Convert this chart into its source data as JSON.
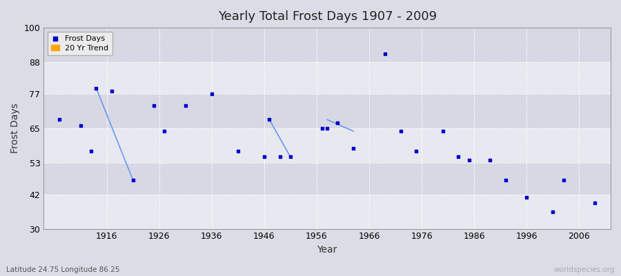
{
  "title": "Yearly Total Frost Days 1907 - 2009",
  "xlabel": "Year",
  "ylabel": "Frost Days",
  "subtitle_lat": "Latitude 24.75 Longitude 86.25",
  "watermark": "worldspecies.org",
  "ylim": [
    30,
    100
  ],
  "xlim": [
    1904,
    2012
  ],
  "yticks": [
    30,
    42,
    53,
    65,
    77,
    88,
    100
  ],
  "xticks": [
    1916,
    1926,
    1936,
    1946,
    1956,
    1966,
    1976,
    1986,
    1996,
    2006
  ],
  "background_color": "#dcdce6",
  "plot_bg_color": "#dcdce6",
  "frost_days_color": "#0000cc",
  "trend_color": "#6699ee",
  "scatter_points": [
    [
      1907,
      68
    ],
    [
      1911,
      66
    ],
    [
      1913,
      57
    ],
    [
      1914,
      79
    ],
    [
      1917,
      78
    ],
    [
      1921,
      47
    ],
    [
      1925,
      73
    ],
    [
      1927,
      64
    ],
    [
      1931,
      73
    ],
    [
      1936,
      77
    ],
    [
      1941,
      57
    ],
    [
      1946,
      55
    ],
    [
      1947,
      68
    ],
    [
      1949,
      55
    ],
    [
      1951,
      55
    ],
    [
      1957,
      65
    ],
    [
      1958,
      65
    ],
    [
      1960,
      67
    ],
    [
      1963,
      58
    ],
    [
      1969,
      91
    ],
    [
      1972,
      64
    ],
    [
      1975,
      57
    ],
    [
      1980,
      64
    ],
    [
      1983,
      55
    ],
    [
      1985,
      54
    ],
    [
      1989,
      54
    ],
    [
      1992,
      47
    ],
    [
      1996,
      41
    ],
    [
      2001,
      36
    ],
    [
      2003,
      47
    ],
    [
      2009,
      39
    ]
  ],
  "trend_segments": [
    [
      [
        1914,
        79
      ],
      [
        1921,
        47
      ]
    ],
    [
      [
        1947,
        68
      ],
      [
        1951,
        55
      ]
    ],
    [
      [
        1958,
        68
      ],
      [
        1963,
        64
      ]
    ]
  ],
  "band_yticks": [
    30,
    42,
    53,
    65,
    77,
    88,
    100
  ],
  "band_colors": [
    "#e8e8f0",
    "#d8d8e4"
  ]
}
